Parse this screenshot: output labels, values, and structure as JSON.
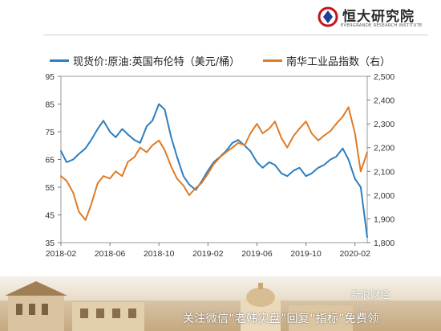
{
  "brand": {
    "name": "恒大研究院",
    "subtitle": "EVERGRANDE RESEARCH INSTITUTE",
    "accent": "#c4141b"
  },
  "watermark": {
    "caption": "关注微信“老韩实盘”回复“指标”免费领",
    "logo_text": "新浪财经"
  },
  "chart_data": {
    "type": "line",
    "x_ticks": [
      "2018-02",
      "2018-06",
      "2018-10",
      "2019-02",
      "2019-06",
      "2019-10",
      "2020-02"
    ],
    "x_range": [
      "2018-02",
      "2020-03"
    ],
    "grid": false,
    "legend_position": "top",
    "left_axis": {
      "ylim": [
        35,
        95
      ],
      "ticks": [
        "35",
        "45",
        "55",
        "65",
        "75",
        "85",
        "95"
      ]
    },
    "right_axis": {
      "ylim": [
        1800,
        2500
      ],
      "ticks": [
        "1,800",
        "1,900",
        "2,000",
        "2,100",
        "2,200",
        "2,300",
        "2,400",
        "2,500"
      ]
    },
    "series": [
      {
        "name": "现货价:原油:英国布伦特（美元/桶）",
        "axis": "left",
        "color": "#2e7ebf",
        "x": [
          "2018-02",
          "2018-02-15",
          "2018-03",
          "2018-03-15",
          "2018-04",
          "2018-04-15",
          "2018-05",
          "2018-05-15",
          "2018-06",
          "2018-06-15",
          "2018-07",
          "2018-07-15",
          "2018-08",
          "2018-08-15",
          "2018-09",
          "2018-09-15",
          "2018-10",
          "2018-10-15",
          "2018-11",
          "2018-11-15",
          "2018-12",
          "2018-12-15",
          "2019-01",
          "2019-01-15",
          "2019-02",
          "2019-02-15",
          "2019-03",
          "2019-03-15",
          "2019-04",
          "2019-04-15",
          "2019-05",
          "2019-05-15",
          "2019-06",
          "2019-06-15",
          "2019-07",
          "2019-07-15",
          "2019-08",
          "2019-08-15",
          "2019-09",
          "2019-09-15",
          "2019-10",
          "2019-10-15",
          "2019-11",
          "2019-11-15",
          "2019-12",
          "2019-12-15",
          "2020-01",
          "2020-01-15",
          "2020-02",
          "2020-02-15",
          "2020-03"
        ],
        "values": [
          68,
          64,
          65,
          67,
          69,
          72,
          76,
          79,
          75,
          73,
          76,
          74,
          72,
          71,
          77,
          79,
          85,
          83,
          73,
          66,
          59,
          56,
          54,
          57,
          61,
          64,
          66,
          68,
          71,
          72,
          70,
          68,
          64,
          62,
          64,
          63,
          60,
          59,
          61,
          62,
          59,
          60,
          62,
          63,
          65,
          66,
          69,
          65,
          58,
          55,
          37
        ]
      },
      {
        "name": "南华工业品指数（右）",
        "axis": "right",
        "color": "#e07a24",
        "x": [
          "2018-02",
          "2018-02-15",
          "2018-03",
          "2018-03-15",
          "2018-04",
          "2018-04-15",
          "2018-05",
          "2018-05-15",
          "2018-06",
          "2018-06-15",
          "2018-07",
          "2018-07-15",
          "2018-08",
          "2018-08-15",
          "2018-09",
          "2018-09-15",
          "2018-10",
          "2018-10-15",
          "2018-11",
          "2018-11-15",
          "2018-12",
          "2018-12-15",
          "2019-01",
          "2019-01-15",
          "2019-02",
          "2019-02-15",
          "2019-03",
          "2019-03-15",
          "2019-04",
          "2019-04-15",
          "2019-05",
          "2019-05-15",
          "2019-06",
          "2019-06-15",
          "2019-07",
          "2019-07-15",
          "2019-08",
          "2019-08-15",
          "2019-09",
          "2019-09-15",
          "2019-10",
          "2019-10-15",
          "2019-11",
          "2019-11-15",
          "2019-12",
          "2019-12-15",
          "2020-01",
          "2020-01-15",
          "2020-02",
          "2020-02-15",
          "2020-03"
        ],
        "values": [
          2080,
          2060,
          2010,
          1930,
          1895,
          1960,
          2050,
          2080,
          2070,
          2100,
          2080,
          2140,
          2160,
          2200,
          2180,
          2210,
          2230,
          2190,
          2120,
          2070,
          2040,
          2000,
          2030,
          2050,
          2090,
          2130,
          2160,
          2180,
          2200,
          2220,
          2210,
          2260,
          2300,
          2260,
          2280,
          2310,
          2240,
          2200,
          2250,
          2280,
          2310,
          2260,
          2230,
          2250,
          2270,
          2300,
          2330,
          2370,
          2260,
          2100,
          2180
        ]
      }
    ]
  }
}
